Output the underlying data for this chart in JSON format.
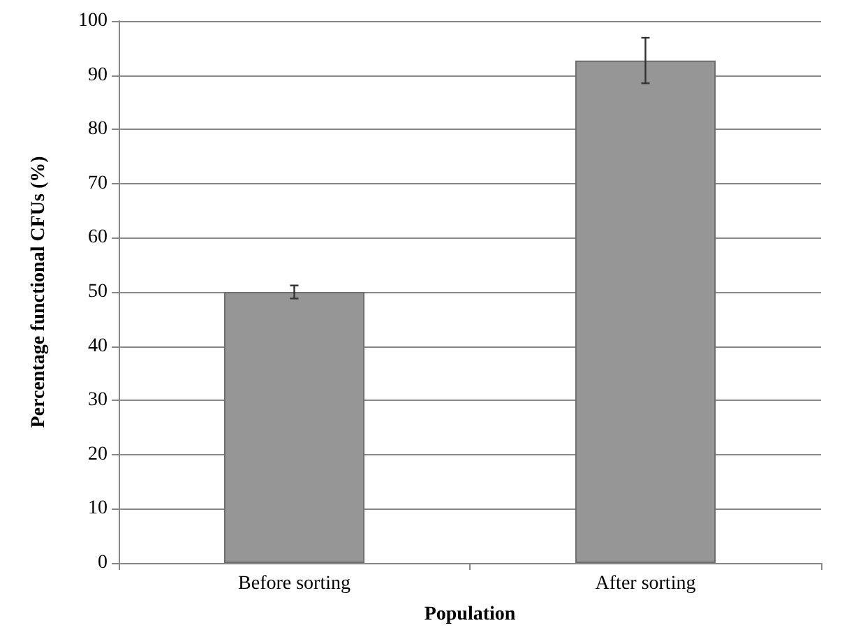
{
  "chart_data": {
    "type": "bar",
    "xlabel": "Population",
    "ylabel": "Percentage functional CFUs (%)",
    "categories": [
      "Before sorting",
      "After sorting"
    ],
    "values": [
      50,
      92.7
    ],
    "errors": [
      1.2,
      4.2
    ],
    "color": "#969696",
    "ylim": [
      0,
      100
    ],
    "yticks": [
      0,
      10,
      20,
      30,
      40,
      50,
      60,
      70,
      80,
      90,
      100
    ],
    "grid": "y"
  }
}
